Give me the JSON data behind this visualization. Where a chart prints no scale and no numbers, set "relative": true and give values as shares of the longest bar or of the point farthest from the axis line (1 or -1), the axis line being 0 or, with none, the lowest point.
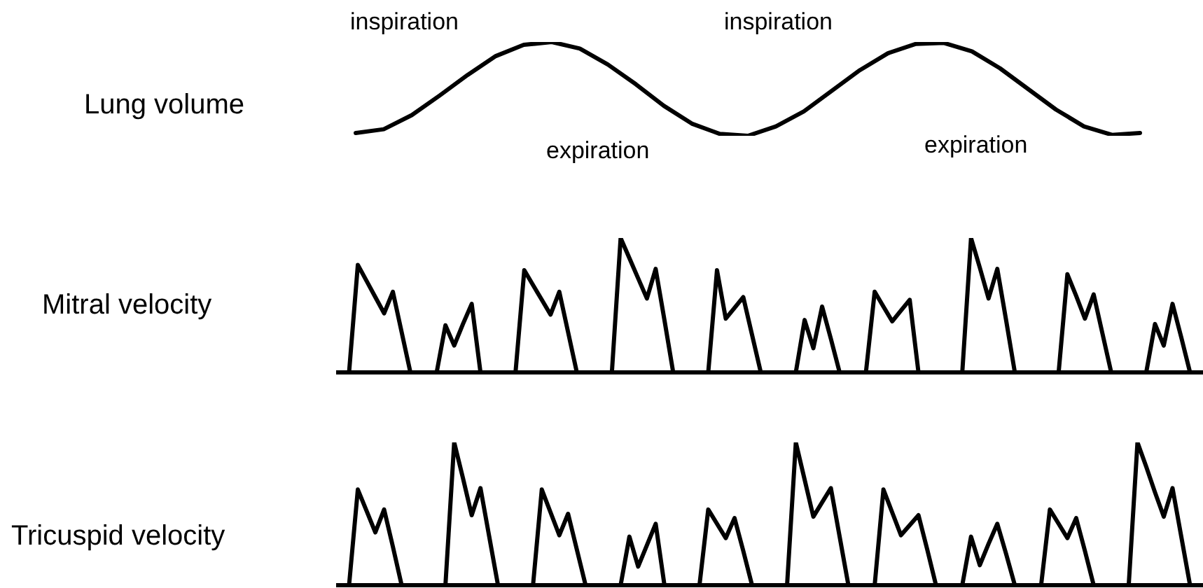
{
  "chart_data": [
    {
      "type": "line",
      "title": "Lung volume",
      "relative": true,
      "tick_labels": false,
      "color": "#000000",
      "categories": [
        null,
        null,
        null,
        null,
        null,
        null,
        null,
        null,
        null,
        null,
        null,
        null,
        null,
        null,
        null,
        null,
        null,
        null,
        null,
        null,
        null,
        null,
        null,
        null,
        null,
        null,
        null,
        null,
        null
      ],
      "values": [
        0.03,
        0.07,
        0.22,
        0.43,
        0.65,
        0.85,
        0.97,
        1.0,
        0.93,
        0.76,
        0.55,
        0.32,
        0.13,
        0.02,
        0.0,
        0.1,
        0.26,
        0.48,
        0.7,
        0.88,
        0.98,
        0.99,
        0.9,
        0.72,
        0.5,
        0.28,
        0.1,
        0.01,
        0.03
      ],
      "annotations": [
        "inspiration",
        "expiration",
        "inspiration",
        "expiration"
      ]
    },
    {
      "type": "line",
      "title": "Mitral velocity",
      "relative": true,
      "tick_labels": false,
      "color": "#000000",
      "categories": [
        null,
        null,
        null,
        null,
        null,
        null,
        null,
        null,
        null,
        null,
        null,
        null,
        null,
        null,
        null,
        null,
        null,
        null,
        null,
        null,
        null,
        null,
        null,
        null,
        null,
        null,
        null,
        null,
        null,
        null,
        null,
        null,
        null,
        null,
        null,
        null,
        null,
        null,
        null,
        null,
        null,
        null,
        null,
        null,
        null,
        null,
        null,
        null,
        null,
        null,
        null,
        null,
        null,
        null,
        null,
        null,
        null,
        null,
        null,
        null,
        null,
        null,
        null,
        null,
        null,
        null,
        null,
        null,
        null,
        null,
        null,
        null,
        null,
        null,
        null,
        null,
        null,
        null,
        null,
        null,
        null,
        null,
        null,
        null,
        null,
        null,
        null,
        null,
        null,
        null,
        null,
        null,
        null,
        null,
        null,
        null,
        null,
        null,
        null
      ],
      "values": [
        0,
        0,
        0.8,
        0.68,
        0.56,
        0.44,
        0.6,
        0.3,
        0,
        0,
        0,
        0,
        0.35,
        0.2,
        0.36,
        0.51,
        0,
        0,
        0,
        0,
        0,
        0.76,
        0.65,
        0.54,
        0.43,
        0.6,
        0.3,
        0,
        0,
        0,
        0,
        0,
        1.0,
        0.85,
        0.7,
        0.55,
        0.77,
        0.39,
        0,
        0,
        0,
        0,
        0,
        0.76,
        0.4,
        0.48,
        0.56,
        0.28,
        0,
        0,
        0,
        0,
        0,
        0.39,
        0.18,
        0.49,
        0.25,
        0,
        0,
        0,
        0,
        0.6,
        0.49,
        0.38,
        0.46,
        0.54,
        0,
        0,
        0,
        0,
        0,
        0,
        1.0,
        0.78,
        0.55,
        0.77,
        0.39,
        0,
        0,
        0,
        0,
        0,
        0,
        0.73,
        0.57,
        0.4,
        0.58,
        0.29,
        0,
        0,
        0,
        0,
        0,
        0.36,
        0.2,
        0.51,
        0.26,
        0,
        0
      ],
      "ref_lines": [
        {
          "axis": "y",
          "value": 0
        }
      ]
    },
    {
      "type": "line",
      "title": "Tricuspid velocity",
      "relative": true,
      "tick_labels": false,
      "color": "#000000",
      "categories": [
        null,
        null,
        null,
        null,
        null,
        null,
        null,
        null,
        null,
        null,
        null,
        null,
        null,
        null,
        null,
        null,
        null,
        null,
        null,
        null,
        null,
        null,
        null,
        null,
        null,
        null,
        null,
        null,
        null,
        null,
        null,
        null,
        null,
        null,
        null,
        null,
        null,
        null,
        null,
        null,
        null,
        null,
        null,
        null,
        null,
        null,
        null,
        null,
        null,
        null,
        null,
        null,
        null,
        null,
        null,
        null,
        null,
        null,
        null,
        null,
        null,
        null,
        null,
        null,
        null,
        null,
        null,
        null,
        null,
        null,
        null,
        null,
        null,
        null,
        null,
        null,
        null,
        null,
        null,
        null,
        null,
        null,
        null,
        null,
        null,
        null,
        null,
        null,
        null,
        null,
        null,
        null,
        null,
        null,
        null,
        null,
        null,
        null,
        null
      ],
      "values": [
        0,
        0,
        0.67,
        0.52,
        0.37,
        0.53,
        0.27,
        0,
        0,
        0,
        0,
        0,
        0,
        1.0,
        0.75,
        0.49,
        0.68,
        0.34,
        0,
        0,
        0,
        0,
        0,
        0.67,
        0.51,
        0.35,
        0.5,
        0.25,
        0,
        0,
        0,
        0,
        0,
        0.34,
        0.13,
        0.28,
        0.43,
        0,
        0,
        0,
        0,
        0,
        0.53,
        0.43,
        0.33,
        0.47,
        0.24,
        0,
        0,
        0,
        0,
        0,
        1.0,
        0.74,
        0.48,
        0.58,
        0.68,
        0.34,
        0,
        0,
        0,
        0,
        0.67,
        0.51,
        0.35,
        0.42,
        0.49,
        0.25,
        0,
        0,
        0,
        0,
        0.34,
        0.14,
        0.29,
        0.43,
        0.22,
        0,
        0,
        0,
        0,
        0.53,
        0.43,
        0.33,
        0.47,
        0.24,
        0,
        0,
        0,
        0,
        0,
        1.0,
        0.83,
        0.65,
        0.48,
        0.68,
        0.34,
        0,
        0
      ],
      "ref_lines": [
        {
          "axis": "y",
          "value": 0
        }
      ]
    }
  ]
}
